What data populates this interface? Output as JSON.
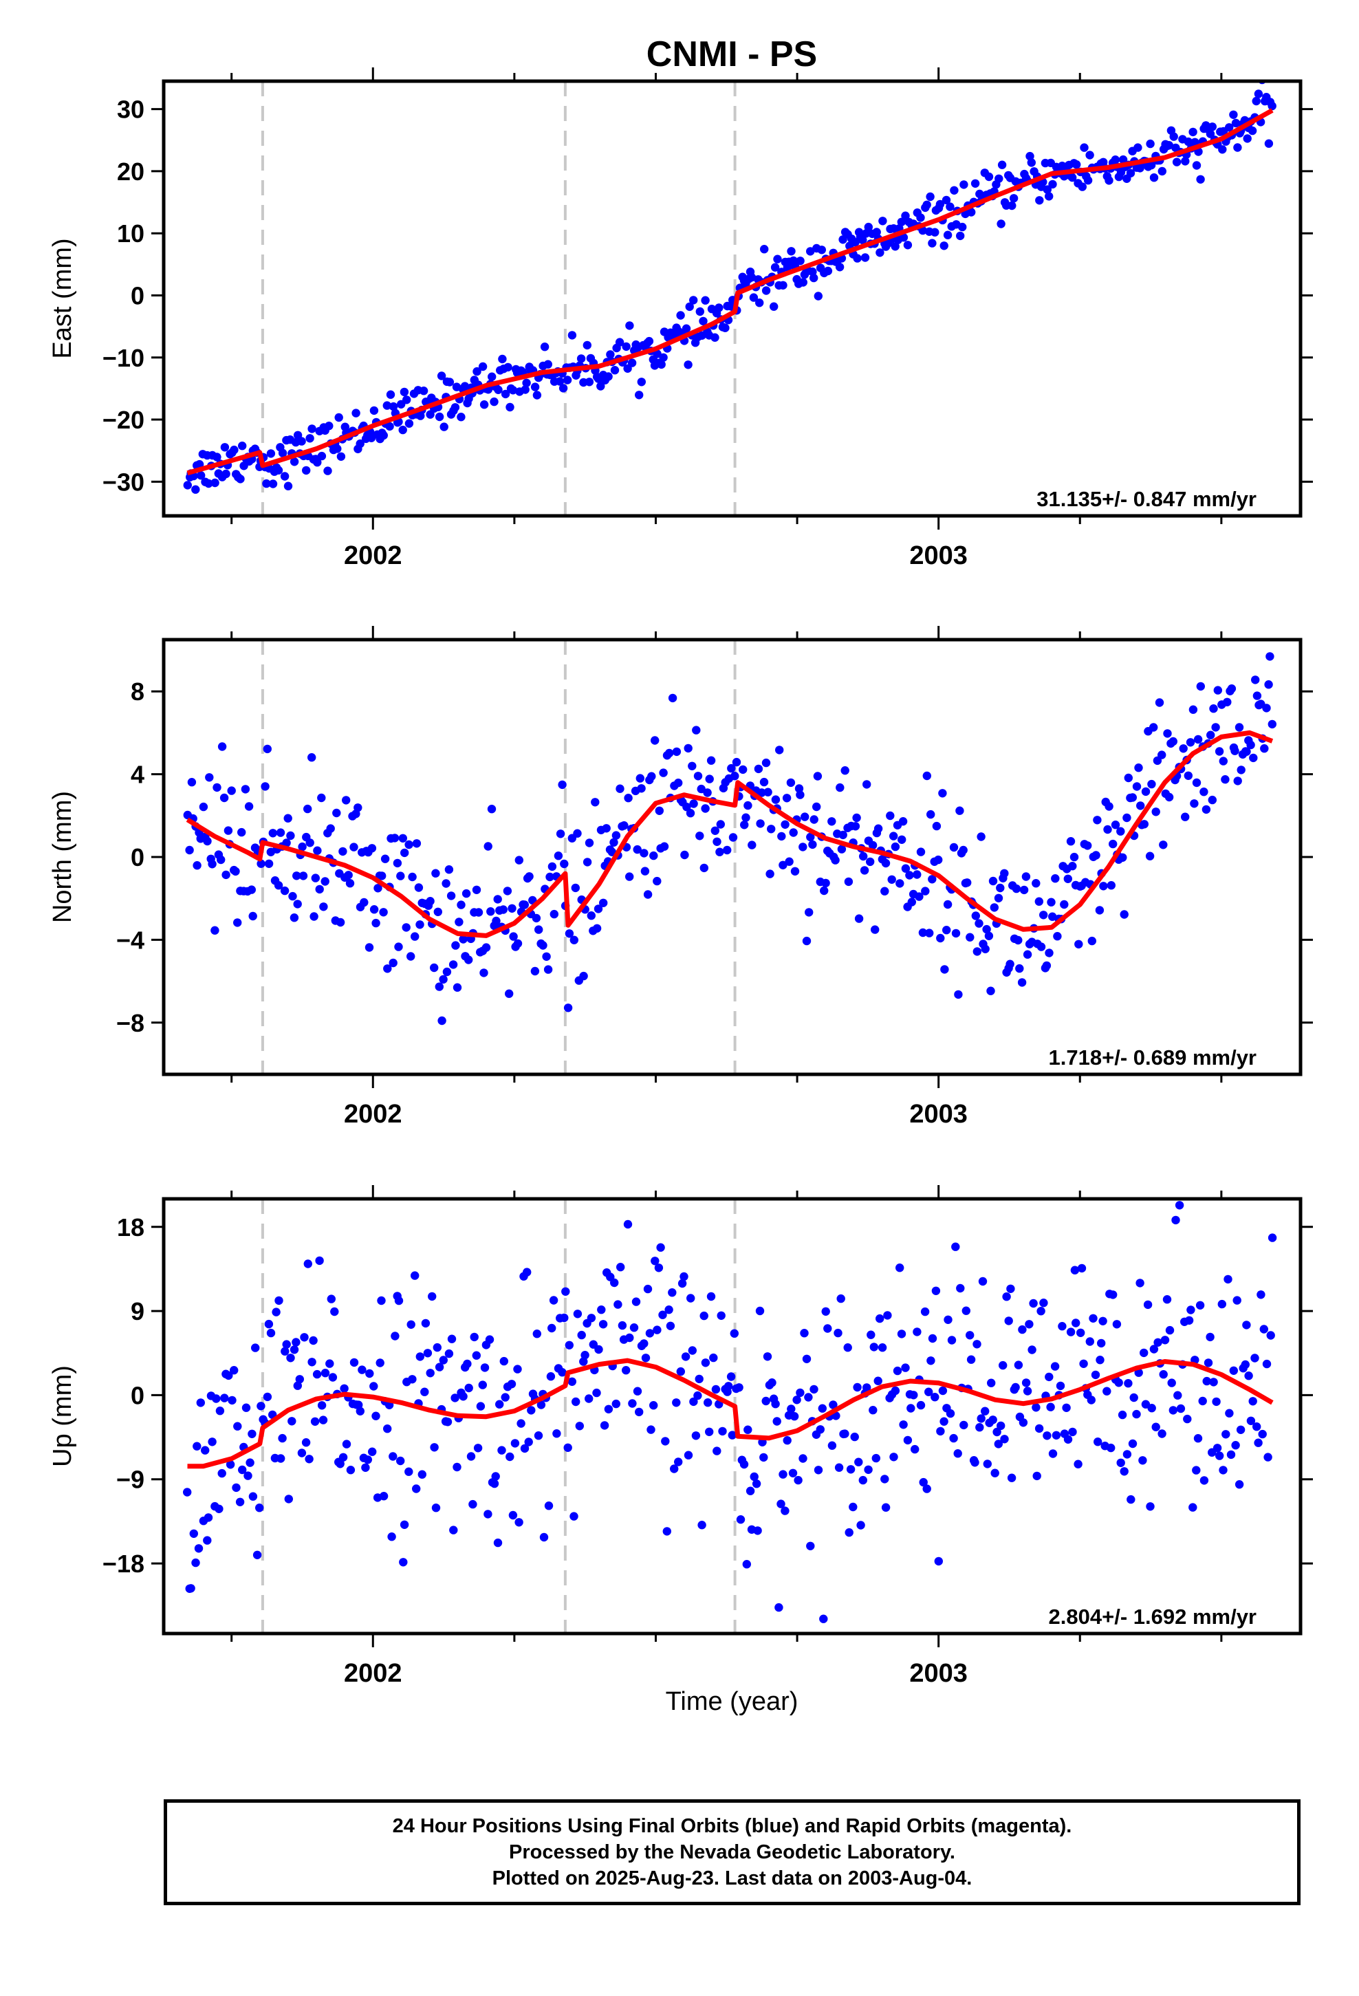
{
  "title": "CNMI - PS",
  "colors": {
    "data": "#0000ff",
    "model": "#ff0000",
    "offset_line": "#c8c8c8",
    "axis": "#000000"
  },
  "chart_data": [
    {
      "type": "scatter",
      "ylabel": "East (mm)",
      "xlim": [
        2001.63,
        2003.64
      ],
      "ylim": [
        -35.5,
        34.5
      ],
      "yticks": [
        -30,
        -20,
        -10,
        0,
        10,
        20,
        30
      ],
      "xtick_labels": [
        {
          "value": 2002,
          "label": "2002"
        },
        {
          "value": 2003,
          "label": "2003"
        }
      ],
      "offsets": [
        2001.805,
        2002.34,
        2002.64
      ],
      "velocity_label": "31.135+/- 0.847 mm/yr",
      "fit": {
        "x": [
          2001.672,
          2001.8,
          2001.805,
          2001.9,
          2002.0,
          2002.1,
          2002.2,
          2002.3,
          2002.34,
          2002.4,
          2002.5,
          2002.6,
          2002.64,
          2002.645,
          2002.7,
          2002.8,
          2002.9,
          2003.0,
          2003.1,
          2003.2,
          2003.3,
          2003.4,
          2003.5,
          2003.59
        ],
        "y": [
          -28.6,
          -25.3,
          -27.4,
          -24.7,
          -21.0,
          -17.8,
          -14.5,
          -12.4,
          -12.0,
          -11.4,
          -8.6,
          -4.6,
          -2.6,
          0.4,
          2.5,
          5.8,
          9.0,
          12.2,
          16.0,
          19.6,
          20.6,
          22.2,
          25.2,
          29.8
        ]
      }
    },
    {
      "type": "scatter",
      "ylabel": "North (mm)",
      "xlim": [
        2001.63,
        2003.64
      ],
      "ylim": [
        -10.5,
        10.5
      ],
      "yticks": [
        -8,
        -4,
        0,
        4,
        8
      ],
      "xtick_labels": [
        {
          "value": 2002,
          "label": "2002"
        },
        {
          "value": 2003,
          "label": "2003"
        }
      ],
      "offsets": [
        2001.805,
        2002.34,
        2002.64
      ],
      "velocity_label": "1.718+/- 0.689 mm/yr",
      "fit": {
        "x": [
          2001.672,
          2001.72,
          2001.78,
          2001.8,
          2001.805,
          2001.85,
          2001.9,
          2001.95,
          2002.0,
          2002.05,
          2002.1,
          2002.15,
          2002.2,
          2002.25,
          2002.3,
          2002.34,
          2002.345,
          2002.4,
          2002.45,
          2002.5,
          2002.55,
          2002.6,
          2002.64,
          2002.645,
          2002.7,
          2002.75,
          2002.8,
          2002.85,
          2002.9,
          2002.95,
          2003.0,
          2003.05,
          2003.1,
          2003.15,
          2003.2,
          2003.25,
          2003.3,
          2003.35,
          2003.4,
          2003.45,
          2003.5,
          2003.55,
          2003.59
        ],
        "y": [
          1.8,
          1.0,
          0.2,
          -0.1,
          0.7,
          0.4,
          0.0,
          -0.4,
          -1.0,
          -1.9,
          -3.0,
          -3.7,
          -3.8,
          -3.2,
          -2.0,
          -0.8,
          -3.3,
          -1.3,
          1.0,
          2.6,
          3.0,
          2.7,
          2.5,
          3.6,
          2.5,
          1.6,
          0.9,
          0.5,
          0.2,
          -0.2,
          -0.9,
          -2.0,
          -3.0,
          -3.5,
          -3.4,
          -2.3,
          -0.5,
          1.6,
          3.6,
          5.0,
          5.8,
          6.0,
          5.6
        ]
      }
    },
    {
      "type": "scatter",
      "ylabel": "Up (mm)",
      "xlabel": "Time (year)",
      "xlim": [
        2001.63,
        2003.64
      ],
      "ylim": [
        -25.5,
        21.0
      ],
      "yticks": [
        -18,
        -9,
        0,
        9,
        18
      ],
      "xtick_labels": [
        {
          "value": 2002,
          "label": "2002"
        },
        {
          "value": 2003,
          "label": "2003"
        }
      ],
      "offsets": [
        2001.805,
        2002.34,
        2002.64
      ],
      "velocity_label": "2.804+/- 1.692 mm/yr",
      "fit": {
        "x": [
          2001.672,
          2001.7,
          2001.75,
          2001.8,
          2001.805,
          2001.85,
          2001.9,
          2001.95,
          2002.0,
          2002.05,
          2002.1,
          2002.15,
          2002.2,
          2002.25,
          2002.3,
          2002.34,
          2002.345,
          2002.4,
          2002.45,
          2002.5,
          2002.55,
          2002.6,
          2002.64,
          2002.645,
          2002.7,
          2002.75,
          2002.8,
          2002.85,
          2002.9,
          2002.95,
          2003.0,
          2003.05,
          2003.1,
          2003.15,
          2003.2,
          2003.25,
          2003.3,
          2003.35,
          2003.4,
          2003.45,
          2003.5,
          2003.55,
          2003.59
        ],
        "y": [
          -7.6,
          -7.6,
          -6.8,
          -5.2,
          -3.5,
          -1.6,
          -0.4,
          0.1,
          -0.2,
          -0.8,
          -1.6,
          -2.2,
          -2.3,
          -1.7,
          -0.3,
          1.0,
          2.4,
          3.3,
          3.7,
          3.0,
          1.6,
          0.0,
          -1.2,
          -4.4,
          -4.6,
          -3.8,
          -2.2,
          -0.5,
          0.9,
          1.5,
          1.3,
          0.5,
          -0.5,
          -0.9,
          -0.4,
          0.6,
          1.8,
          2.9,
          3.6,
          3.3,
          2.2,
          0.6,
          -0.8
        ]
      }
    }
  ],
  "footer": {
    "line1": "24 Hour Positions Using Final Orbits (blue) and Rapid Orbits (magenta).",
    "line2": "Processed by the Nevada Geodetic Laboratory.",
    "line3": "Plotted on 2025-Aug-23. Last data on 2003-Aug-04."
  }
}
